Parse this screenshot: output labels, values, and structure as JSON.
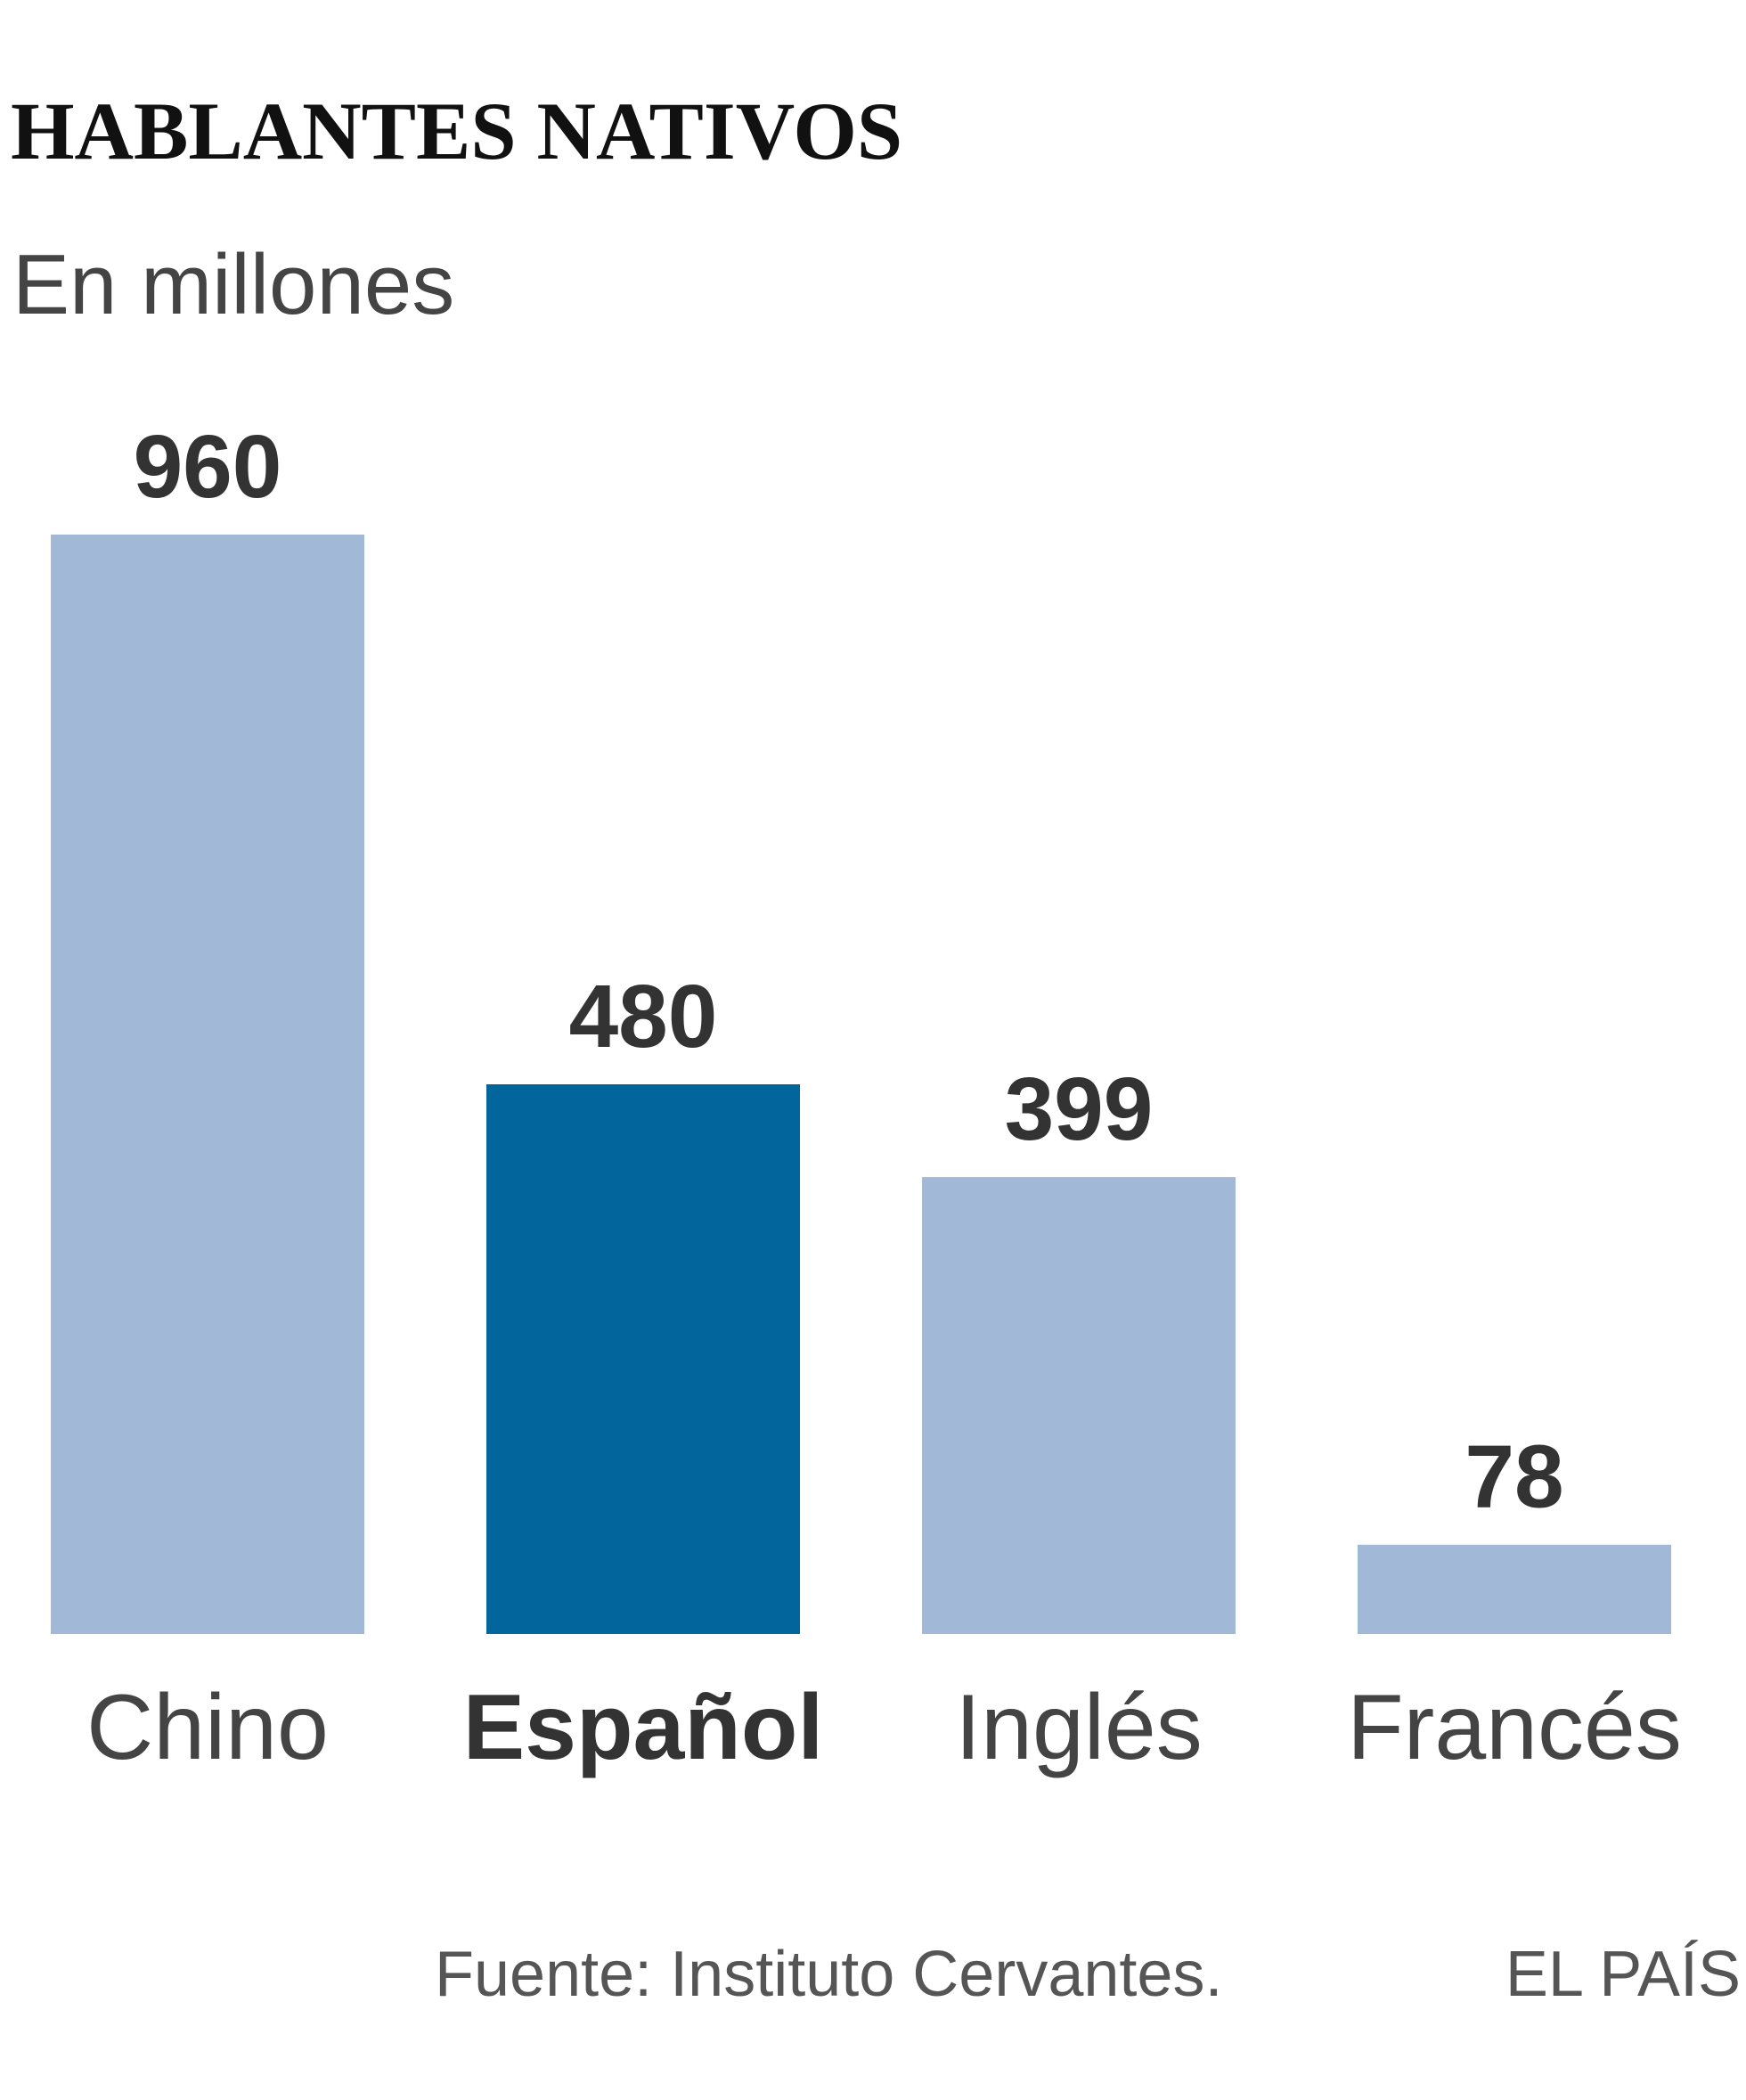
{
  "chart_data": {
    "type": "bar",
    "title": "HABLANTES NATIVOS",
    "subtitle": "En millones",
    "categories": [
      "Chino",
      "Español",
      "Inglés",
      "Francés"
    ],
    "values": [
      960,
      480,
      399,
      78
    ],
    "colors": [
      "#a1b9d7",
      "#02659b",
      "#a1b9d7",
      "#a1b9d7"
    ],
    "highlight": 1,
    "source": "Fuente: Instituto Cervantes.",
    "credit": "EL PAÍS"
  }
}
